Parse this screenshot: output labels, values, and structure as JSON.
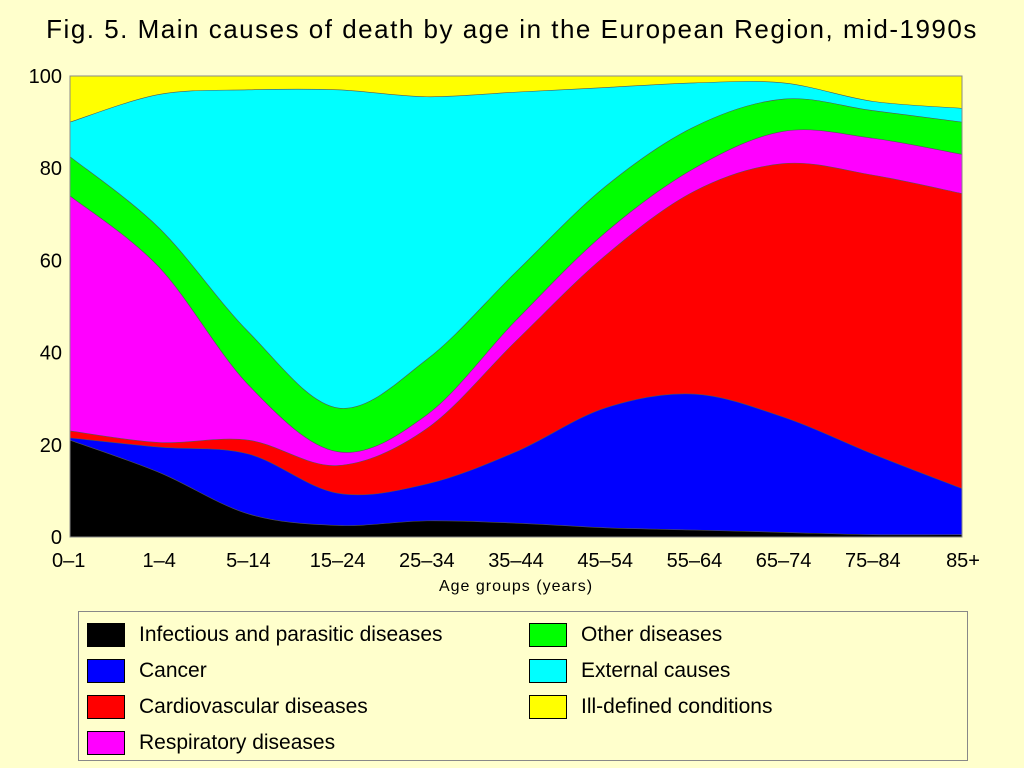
{
  "chart_data": {
    "type": "area",
    "title": "Fig. 5. Main causes of death by age in the European Region, mid-1990s",
    "xlabel": "Age groups (years)",
    "ylabel": "",
    "ylim": [
      0,
      100
    ],
    "yticks": [
      "0",
      "20",
      "40",
      "60",
      "80",
      "100"
    ],
    "categories": [
      "0–1",
      "1–4",
      "5–14",
      "15–24",
      "25–34",
      "35–44",
      "45–54",
      "55–64",
      "65–74",
      "75–84",
      "85+"
    ],
    "stacked": true,
    "grid": false,
    "legend_position": "bottom",
    "series": [
      {
        "name": "Infectious and parasitic diseases",
        "color": "#000000",
        "values": [
          21,
          14,
          5,
          2.5,
          3.5,
          3,
          2,
          1.5,
          1,
          0.5,
          0.5
        ]
      },
      {
        "name": "Cancer",
        "color": "#0000ff",
        "values": [
          0.5,
          5.5,
          13,
          7,
          8,
          15.5,
          26,
          29.5,
          25,
          17.5,
          10
        ]
      },
      {
        "name": "Cardiovascular diseases",
        "color": "#ff0000",
        "values": [
          1.5,
          1,
          3,
          6,
          12,
          24,
          33,
          44,
          55,
          60.5,
          64
        ]
      },
      {
        "name": "Respiratory diseases",
        "color": "#ff00ff",
        "values": [
          51,
          38,
          12,
          3,
          3,
          4.5,
          5,
          5,
          7,
          8,
          8.5
        ]
      },
      {
        "name": "Other diseases",
        "color": "#00ff00",
        "values": [
          8.5,
          8.5,
          11.5,
          9.5,
          12,
          10.5,
          10,
          9,
          7,
          6,
          7
        ]
      },
      {
        "name": "External causes",
        "color": "#00ffff",
        "values": [
          7.5,
          29,
          52.5,
          69,
          57,
          39,
          21.5,
          9.5,
          3.5,
          2,
          3
        ]
      },
      {
        "name": "Ill-defined conditions",
        "color": "#ffff00",
        "values": [
          10,
          4,
          3,
          3,
          4.5,
          3.5,
          2.5,
          1.5,
          1.5,
          5.5,
          7
        ]
      }
    ]
  }
}
